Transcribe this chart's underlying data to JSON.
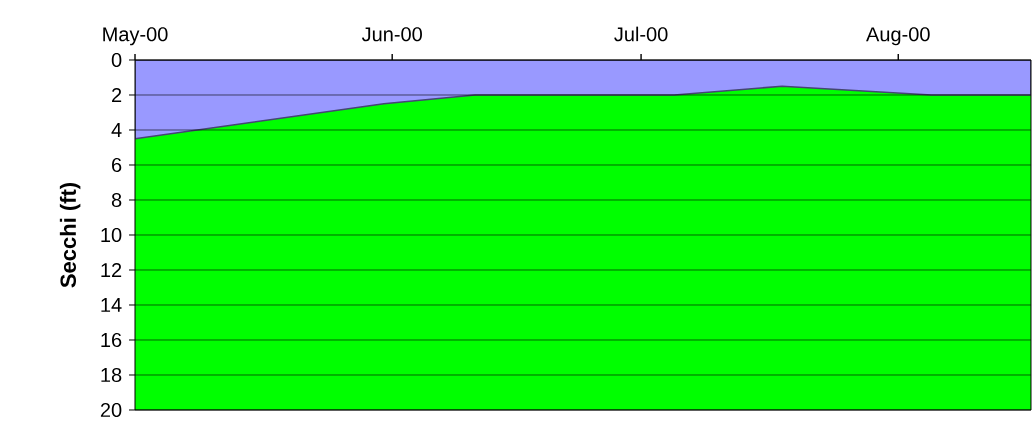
{
  "chart_data": {
    "type": "area",
    "ylabel": "Secchi (ft)",
    "grid": "y",
    "x": [
      "2000-05-01",
      "2000-05-31",
      "2000-06-11",
      "2000-07-05",
      "2000-07-18",
      "2000-08-05",
      "2000-08-17"
    ],
    "series": [
      {
        "color": "#9999ff",
        "values": [
          4.5,
          2.5,
          2.0,
          2.0,
          1.5,
          2.0,
          2.0
        ]
      }
    ],
    "bands": [
      {
        "axis": "y",
        "from": 0,
        "to": 20,
        "color": "#00ff00"
      }
    ],
    "xlim": [
      "2000-05-01",
      "2000-08-17"
    ],
    "xticks": [
      {
        "value": "2000-05-01",
        "label": "May-00"
      },
      {
        "value": "2000-06-01",
        "label": "Jun-00"
      },
      {
        "value": "2000-07-01",
        "label": "Jul-00"
      },
      {
        "value": "2000-08-01",
        "label": "Aug-00"
      }
    ],
    "ylim": [
      20,
      0
    ],
    "yticks": [
      0,
      2,
      4,
      6,
      8,
      10,
      12,
      14,
      16,
      18,
      20
    ]
  }
}
